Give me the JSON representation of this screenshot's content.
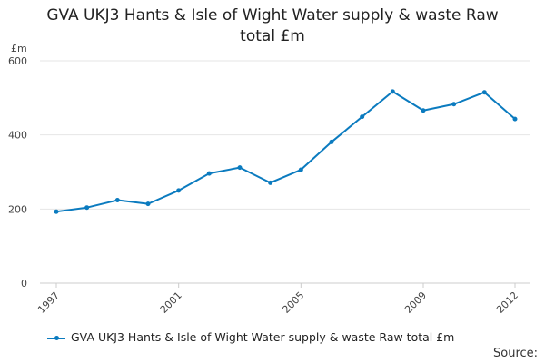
{
  "chart_data": {
    "type": "line",
    "title_lines": [
      "GVA UKJ3 Hants & Isle of Wight Water supply & waste Raw",
      "total £m"
    ],
    "ylabel": "£m",
    "xlabel": "",
    "ylim": [
      0,
      600
    ],
    "yticks": [
      0,
      200,
      400,
      600
    ],
    "x": [
      1997,
      1998,
      1999,
      2000,
      2001,
      2002,
      2003,
      2004,
      2005,
      2006,
      2007,
      2008,
      2009,
      2010,
      2011,
      2012
    ],
    "xtick_labels": [
      1997,
      2001,
      2005,
      2009,
      2012
    ],
    "series": [
      {
        "name": "GVA UKJ3 Hants & Isle of Wight Water supply & waste Raw total £m",
        "color": "#0b7bbf",
        "values": [
          193,
          204,
          224,
          214,
          250,
          296,
          312,
          271,
          306,
          381,
          449,
          517,
          466,
          483,
          515,
          443
        ]
      }
    ],
    "grid": true,
    "legend": "bottom"
  },
  "source_label": "Source:"
}
